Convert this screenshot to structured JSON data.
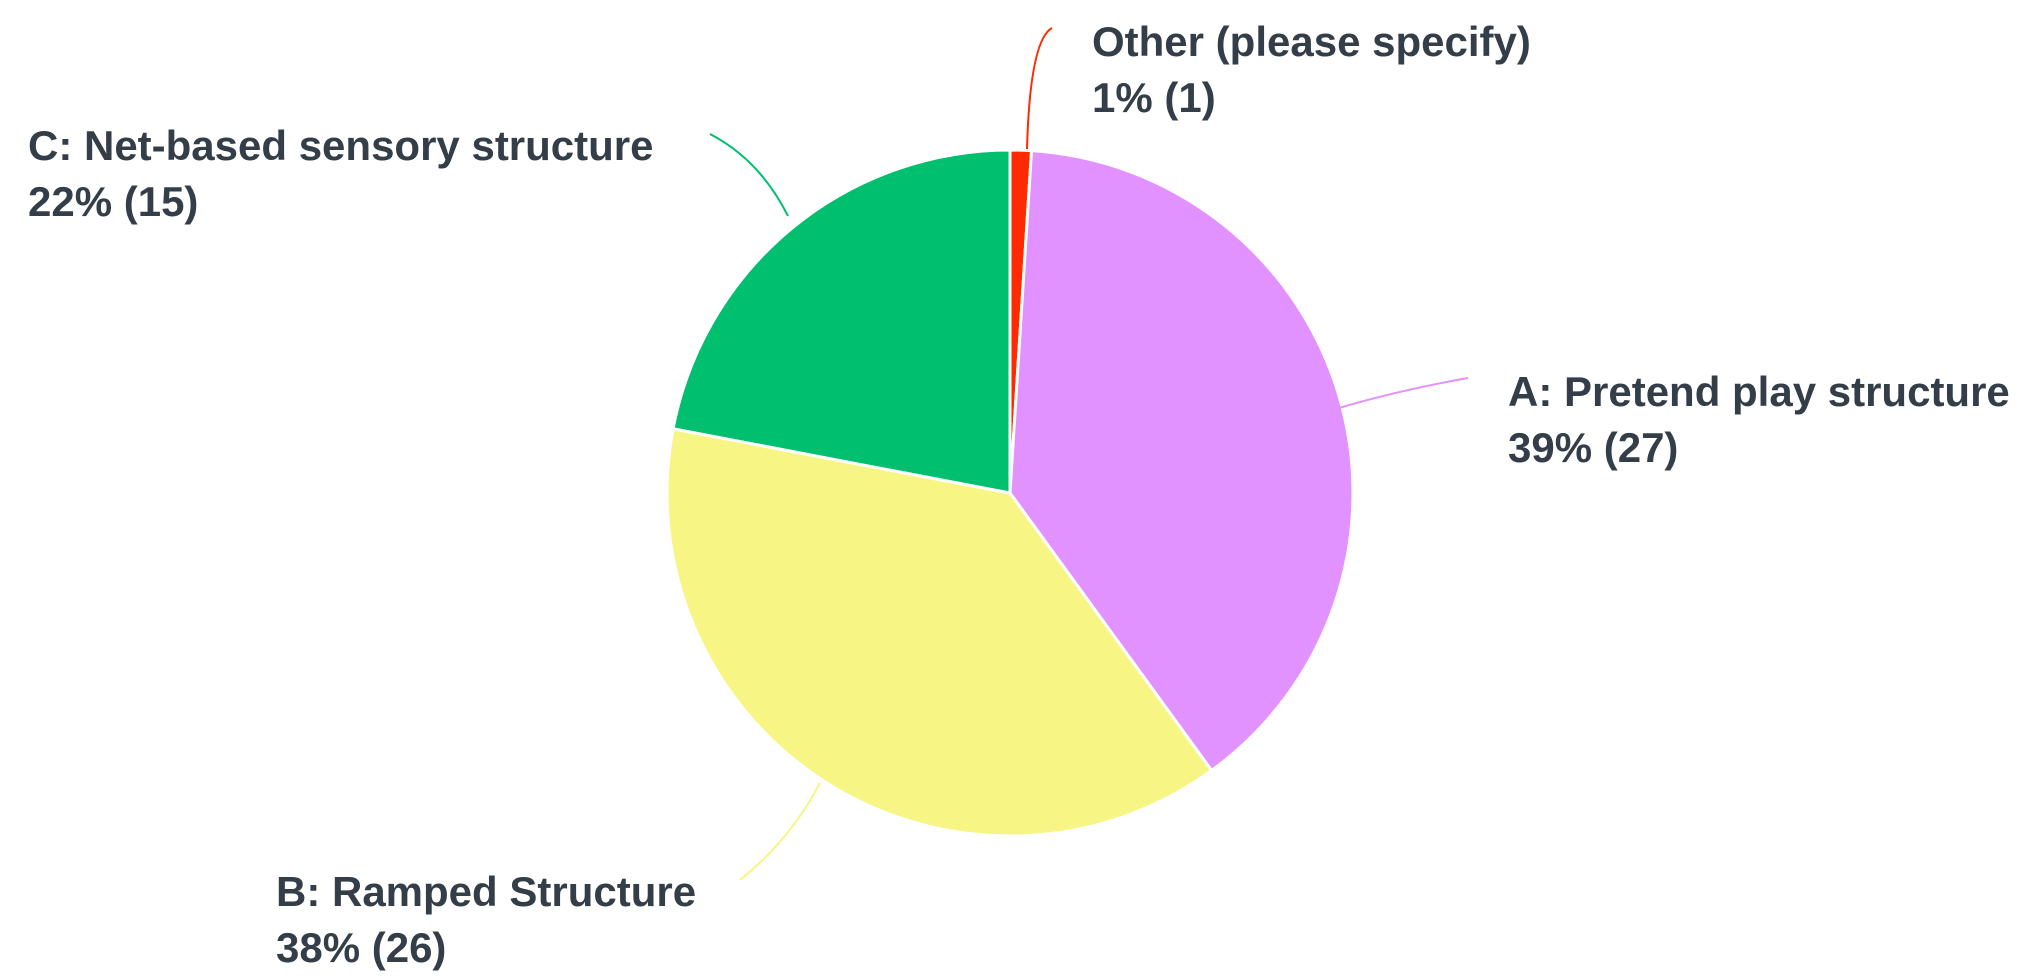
{
  "chart_data": {
    "type": "pie",
    "title": "",
    "slices": [
      {
        "label": "Other (please specify)",
        "percent": 1,
        "count": 1,
        "value_label": "1% (1)",
        "color": "#ff2a00"
      },
      {
        "label": "A: Pretend play structure",
        "percent": 39,
        "count": 27,
        "value_label": "39% (27)",
        "color": "#e292fe"
      },
      {
        "label": "B: Ramped Structure",
        "percent": 38,
        "count": 26,
        "value_label": "38% (26)",
        "color": "#f7f685"
      },
      {
        "label": "C: Net-based sensory structure",
        "percent": 22,
        "count": 15,
        "value_label": "22% (15)",
        "color": "#00bf6f"
      }
    ],
    "start_angle_deg": 0,
    "direction": "clockwise",
    "label_text_color": "#333e48"
  }
}
